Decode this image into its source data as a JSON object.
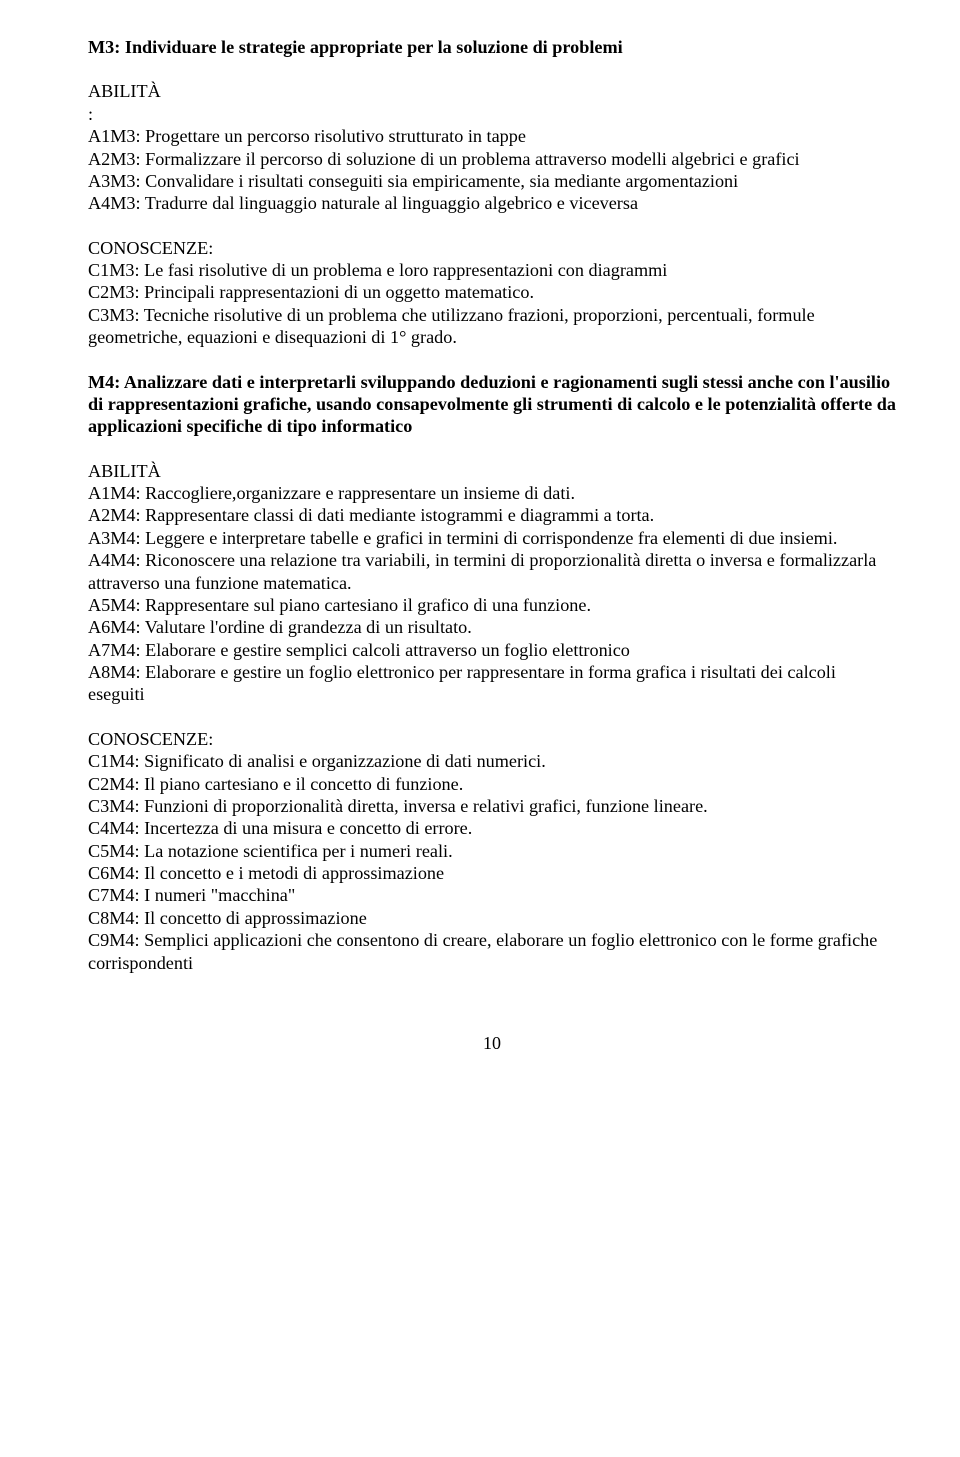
{
  "m3": {
    "heading": "M3: Individuare le strategie appropriate per la soluzione di problemi",
    "abilita_label": "ABILITÀ",
    "colon": ":",
    "a1": "A1M3: Progettare un percorso risolutivo strutturato in tappe",
    "a2": "A2M3: Formalizzare il percorso di soluzione di un problema attraverso modelli algebrici e grafici",
    "a3": "A3M3: Convalidare i risultati conseguiti sia empiricamente, sia mediante argomentazioni",
    "a4": "A4M3: Tradurre dal linguaggio naturale al linguaggio algebrico e viceversa",
    "conoscenze_label": "CONOSCENZE:",
    "c1": "C1M3: Le fasi risolutive di un problema e loro rappresentazioni con diagrammi",
    "c2": "C2M3: Principali rappresentazioni di un oggetto matematico.",
    "c3": "C3M3: Tecniche risolutive di un problema che utilizzano frazioni, proporzioni, percentuali, formule geometriche, equazioni e disequazioni di 1° grado."
  },
  "m4": {
    "heading": "M4: Analizzare dati e interpretarli sviluppando deduzioni e ragionamenti sugli stessi anche con l'ausilio di rappresentazioni grafiche, usando consapevolmente gli strumenti di calcolo e le potenzialità offerte da applicazioni specifiche di tipo informatico",
    "abilita_label": "ABILITÀ",
    "a1": "A1M4: Raccogliere,organizzare e rappresentare un  insieme di dati.",
    "a2": "A2M4: Rappresentare classi di dati mediante istogrammi e diagrammi a torta.",
    "a3": "A3M4: Leggere e interpretare tabelle e grafici in termini di corrispondenze fra elementi di due insiemi.",
    "a4": "A4M4: Riconoscere una relazione tra variabili, in termini di proporzionalità diretta o inversa e formalizzarla  attraverso una funzione matematica.",
    "a5": "A5M4: Rappresentare sul piano cartesiano il grafico di una funzione.",
    "a6": "A6M4: Valutare l'ordine di grandezza di un risultato.",
    "a7": "A7M4: Elaborare e gestire semplici calcoli attraverso un foglio elettronico",
    "a8": "A8M4: Elaborare e gestire un foglio elettronico per rappresentare in forma grafica i risultati dei calcoli eseguiti",
    "conoscenze_label": "CONOSCENZE:",
    "c1": "C1M4: Significato di analisi e organizzazione di dati numerici.",
    "c2": "C2M4: Il piano cartesiano e il concetto di funzione.",
    "c3": "C3M4: Funzioni di proporzionalità diretta, inversa e relativi grafici, funzione lineare.",
    "c4": "C4M4: Incertezza di una misura e concetto di errore.",
    "c5": "C5M4: La notazione scientifica per i numeri reali.",
    "c6": "C6M4: Il concetto e i metodi di approssimazione",
    "c7": "C7M4: I numeri \"macchina\"",
    "c8": "C8M4: Il concetto di approssimazione",
    "c9": "C9M4: Semplici applicazioni che consentono di creare, elaborare un foglio elettronico con le forme grafiche corrispondenti"
  },
  "page_number": "10"
}
